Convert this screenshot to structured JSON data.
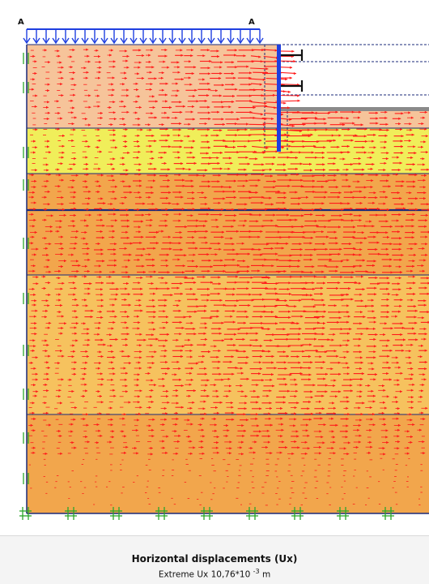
{
  "diagram": {
    "section_labels": [
      "A",
      "A"
    ],
    "colors": {
      "layer_top": "#f6c49a",
      "layer_yellow": "#f0ee5a",
      "layer_orange": "#f2a64c",
      "layer_light_orange": "#f6c25e",
      "boundary_line": "#1a2a7a",
      "arrow": "#ff1a1a",
      "load": "#1f3fe0",
      "wall": "#1f3fe0",
      "anchor": "#111111",
      "fixity": "#2aa62a",
      "excavation_floor": "#8a8a8a"
    },
    "icons": [
      "distributed-load-icon",
      "anchor-icon",
      "fixity-icon",
      "displacement-arrow-icon"
    ]
  },
  "caption": {
    "title": "Horizontal displacements (Ux)",
    "subtitle_prefix": "Extreme Ux 10,76*10",
    "subtitle_exponent": "-3",
    "subtitle_unit": "m"
  }
}
